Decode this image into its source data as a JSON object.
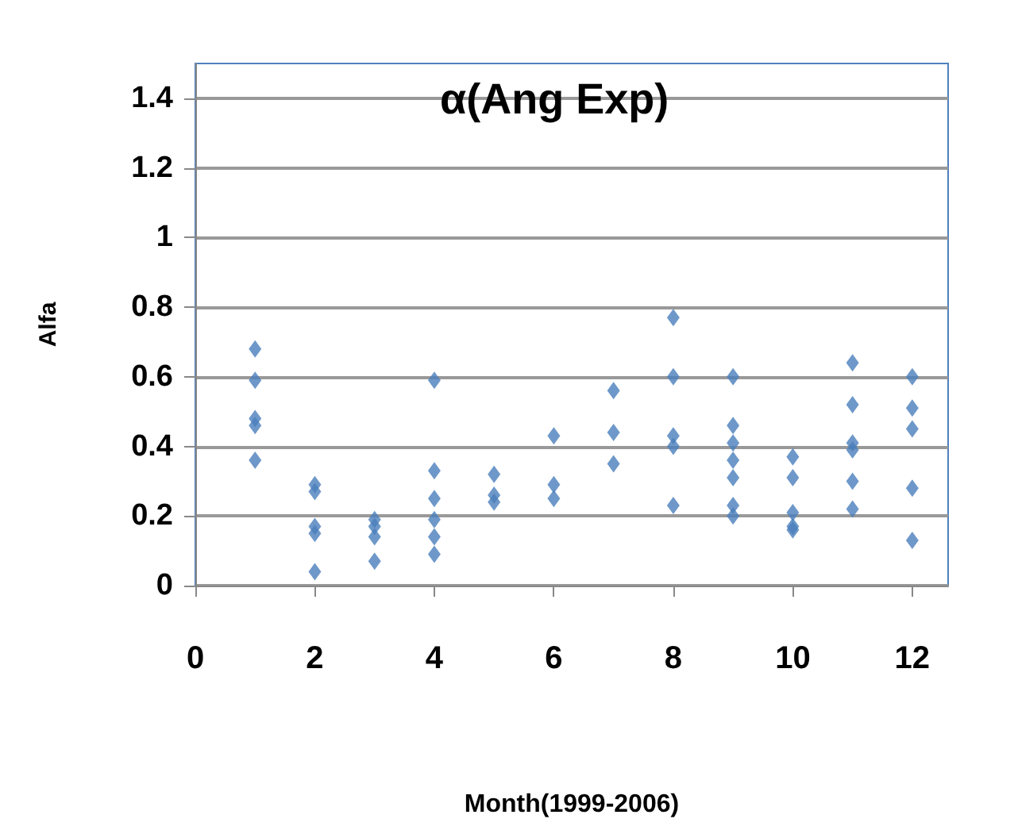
{
  "chart_data": {
    "type": "scatter",
    "title": "α(Ang Exp)",
    "xlabel": "Month(1999-2006)",
    "ylabel": "Alfa",
    "series": [
      {
        "color": "#4a7ebb",
        "x": [
          1,
          1,
          1,
          1,
          1,
          2,
          2,
          2,
          2,
          2,
          3,
          3,
          3,
          3,
          4,
          4,
          4,
          4,
          4,
          4,
          5,
          5,
          5,
          6,
          6,
          6,
          7,
          7,
          7,
          8,
          8,
          8,
          8,
          8,
          9,
          9,
          9,
          9,
          9,
          9,
          9,
          10,
          10,
          10,
          10,
          10,
          11,
          11,
          11,
          11,
          11,
          11,
          12,
          12,
          12,
          12,
          12
        ],
        "values": [
          0.68,
          0.59,
          0.48,
          0.46,
          0.36,
          0.29,
          0.27,
          0.17,
          0.15,
          0.04,
          0.19,
          0.17,
          0.14,
          0.07,
          0.59,
          0.33,
          0.25,
          0.19,
          0.14,
          0.09,
          0.32,
          0.26,
          0.24,
          0.43,
          0.29,
          0.25,
          0.56,
          0.44,
          0.35,
          0.77,
          0.6,
          0.43,
          0.4,
          0.23,
          0.6,
          0.46,
          0.41,
          0.36,
          0.31,
          0.23,
          0.2,
          0.37,
          0.31,
          0.21,
          0.17,
          0.16,
          0.64,
          0.52,
          0.41,
          0.39,
          0.3,
          0.22,
          0.6,
          0.51,
          0.45,
          0.28,
          0.13
        ]
      }
    ],
    "xlim": [
      0,
      12.6
    ],
    "xticks": [
      0,
      2,
      4,
      6,
      8,
      10,
      12
    ],
    "ylim": [
      0,
      1.5
    ],
    "yticks": [
      0,
      0.2,
      0.4,
      0.6,
      0.8,
      1,
      1.2,
      1.4
    ],
    "grid": "y",
    "marker": "diamond"
  }
}
